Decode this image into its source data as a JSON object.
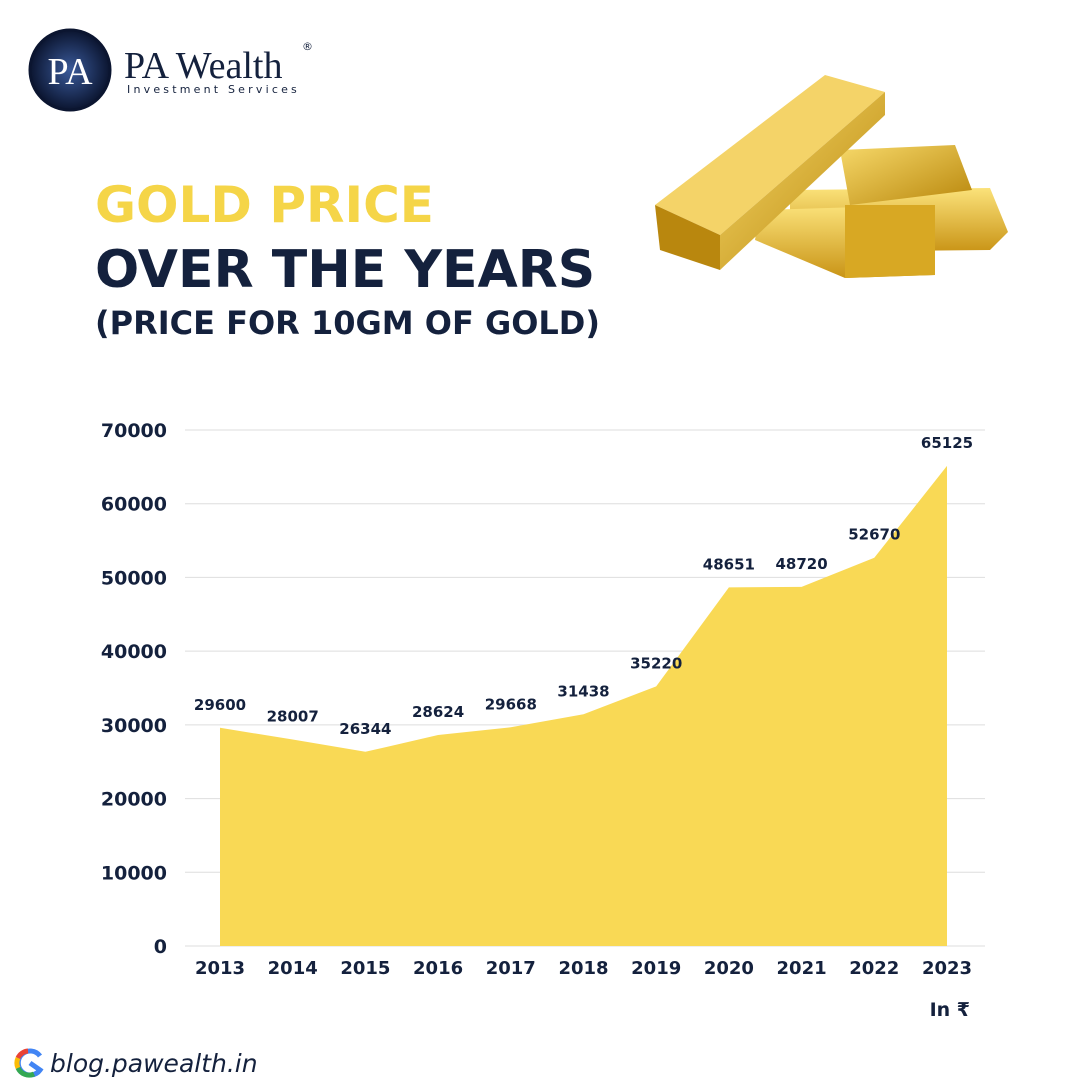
{
  "brand": {
    "logo": "PA",
    "name": "PA Wealth",
    "mark": "®",
    "tagline": "Investment Services"
  },
  "footer": {
    "url": "blog.pawealth.in"
  },
  "chart_data": {
    "type": "area",
    "title": "GOLD PRICE",
    "subtitle": "OVER THE YEARS",
    "note": "(PRICE FOR 10GM OF GOLD)",
    "unit_label": "In ₹",
    "categories": [
      "2013",
      "2014",
      "2015",
      "2016",
      "2017",
      "2018",
      "2019",
      "2020",
      "2021",
      "2022",
      "2023"
    ],
    "values": [
      29600,
      28007,
      26344,
      28624,
      29668,
      31438,
      35220,
      48651,
      48720,
      52670,
      65125
    ],
    "color": "#f9d955",
    "ylim": [
      0,
      70000
    ],
    "yticks": [
      0,
      10000,
      20000,
      30000,
      40000,
      50000,
      60000,
      70000
    ],
    "grid": true
  }
}
